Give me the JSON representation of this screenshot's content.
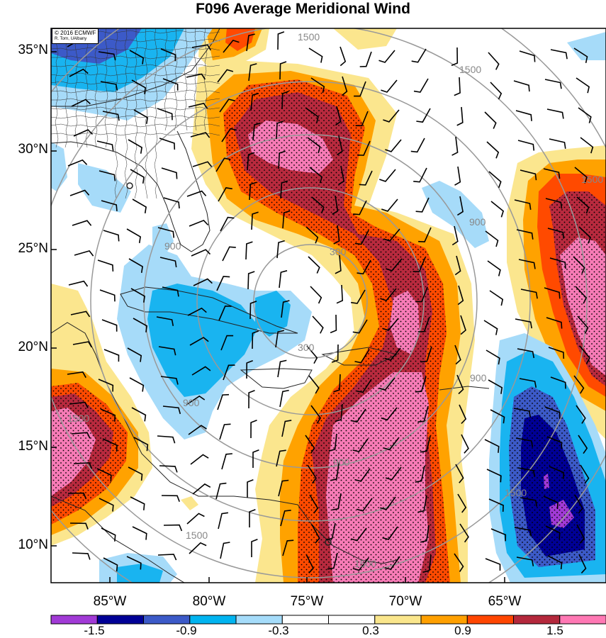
{
  "title": "F096 Average Meridional Wind",
  "credit": {
    "line1": "© 2016 ECMWF",
    "line2": "R. Torn, UAlbany"
  },
  "lat_labels": [
    "35°N",
    "30°N",
    "25°N",
    "20°N",
    "15°N",
    "10°N"
  ],
  "lon_labels": [
    "85°W",
    "80°W",
    "75°W",
    "70°W",
    "65°W"
  ],
  "range_ring_labels": [
    "300",
    "900",
    "1500"
  ],
  "colorbar": {
    "labels": [
      "-1.5",
      "-0.9",
      "-0.3",
      "0.3",
      "0.9",
      "1.5"
    ],
    "colors": [
      "#a13ad6",
      "#000096",
      "#3c5ac8",
      "#00b4f0",
      "#a5dcfa",
      "#ffffff",
      "#ffffff",
      "#fae68c",
      "#ffa000",
      "#ff4600",
      "#b4283c",
      "#ff78b4"
    ]
  },
  "palette": {
    "pink": "#f77bb6",
    "darkred": "#b82a3e",
    "red": "#ff4a00",
    "orange": "#ffa200",
    "yellow": "#fbe68e",
    "lightblue": "#a6dbf9",
    "blue": "#19b4f0",
    "medblue": "#3c5ac8",
    "navy": "#000096",
    "purple": "#a13ad6",
    "ring": "#999999"
  }
}
